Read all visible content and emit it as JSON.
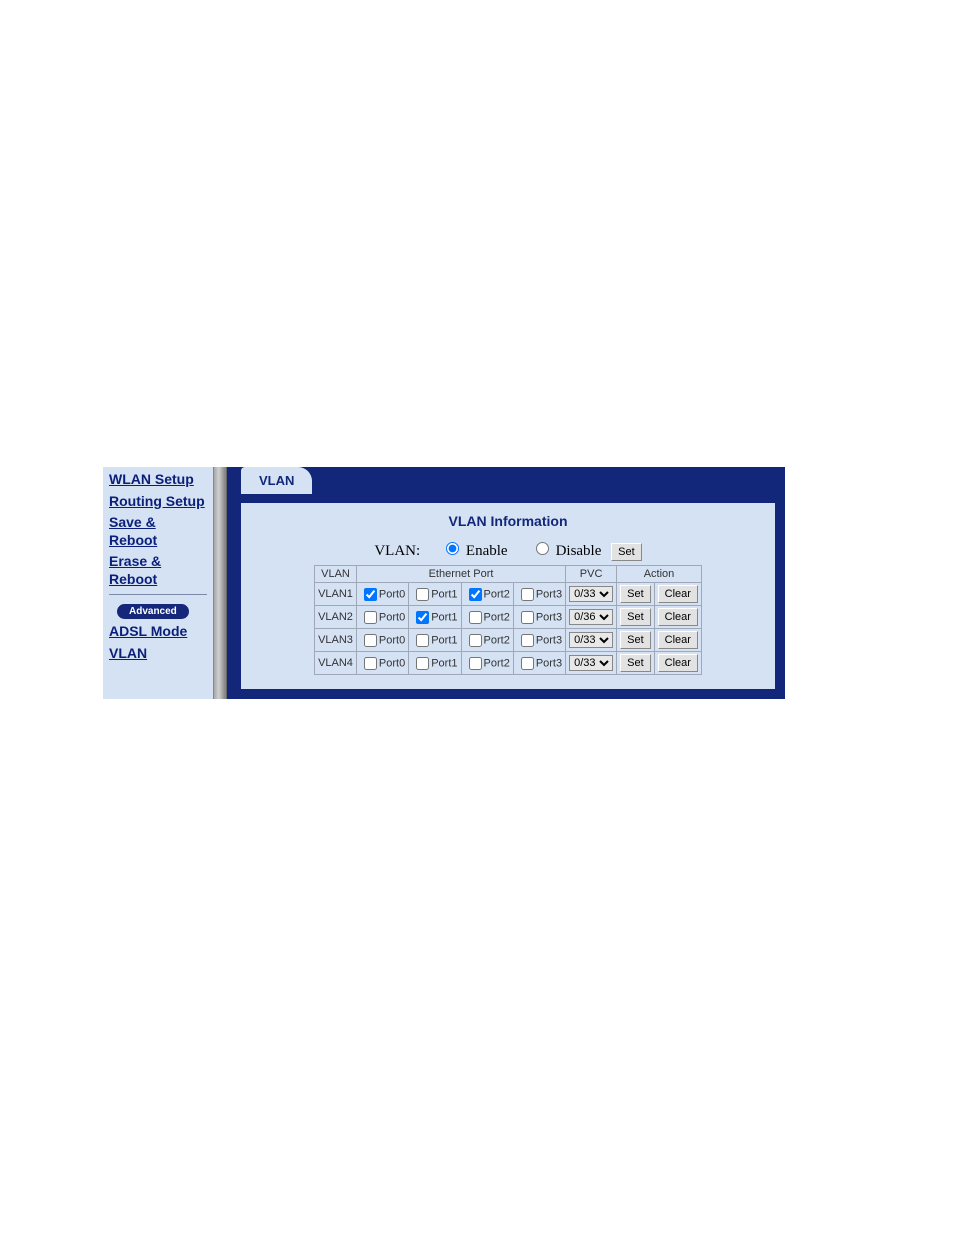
{
  "colors": {
    "panel_bg": "#d5e2f4",
    "frame_bg": "#12277a",
    "link_color": "#0a1f7a"
  },
  "sidebar": {
    "items": [
      {
        "label": "WLAN Setup"
      },
      {
        "label": "Routing Setup"
      },
      {
        "label": "Save & Reboot"
      },
      {
        "label": "Erase & Reboot"
      }
    ],
    "advanced_label": "Advanced",
    "adv_items": [
      {
        "label": "ADSL Mode"
      },
      {
        "label": "VLAN"
      }
    ]
  },
  "tab_label": "VLAN",
  "panel_title": "VLAN Information",
  "vlan_toggle": {
    "label": "VLAN:",
    "enable_label": "Enable",
    "disable_label": "Disable",
    "selected": "enable",
    "set_label": "Set"
  },
  "table": {
    "headers": {
      "vlan": "VLAN",
      "eth": "Ethernet Port",
      "pvc": "PVC",
      "action": "Action"
    },
    "port_labels": [
      "Port0",
      "Port1",
      "Port2",
      "Port3"
    ],
    "action_set": "Set",
    "action_clear": "Clear",
    "rows": [
      {
        "name": "VLAN1",
        "ports": [
          true,
          false,
          true,
          false
        ],
        "pvc": "0/33"
      },
      {
        "name": "VLAN2",
        "ports": [
          false,
          true,
          false,
          false
        ],
        "pvc": "0/36"
      },
      {
        "name": "VLAN3",
        "ports": [
          false,
          false,
          false,
          false
        ],
        "pvc": "0/33"
      },
      {
        "name": "VLAN4",
        "ports": [
          false,
          false,
          false,
          false
        ],
        "pvc": "0/33"
      }
    ]
  }
}
